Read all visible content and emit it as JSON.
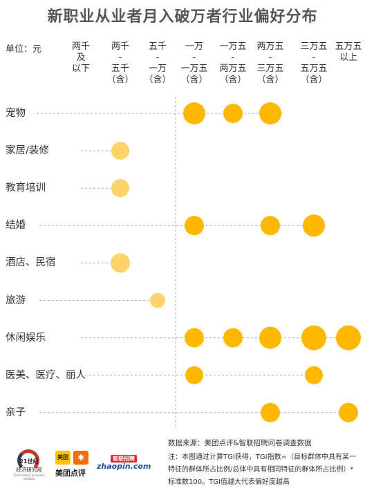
{
  "title": "新职业从业者月入破万者行业偏好分布",
  "unit_label": "单位：元",
  "colors": {
    "dot": "#ffb800",
    "dot_light": "#fed36a",
    "line": "#aaaaaa"
  },
  "chart_data": {
    "type": "scatter",
    "title": "新职业从业者月入破万者行业偏好分布",
    "unit": "元",
    "columns": [
      "两千\n及\n以下",
      "两千\n-\n五千\n（含）",
      "五千\n-\n一万\n（含）",
      "一万\n-\n一万五\n（含）",
      "一万五\n-\n两万五\n（含）",
      "两万五\n-\n三万五\n（含）",
      "三万五\n-\n五万五\n（含）",
      "五万五\n以上"
    ],
    "rows": [
      {
        "label": "宠物",
        "points": [
          {
            "col": 3,
            "size": "l"
          },
          {
            "col": 4,
            "size": "m"
          },
          {
            "col": 5,
            "size": "l"
          }
        ]
      },
      {
        "label": "家居/装修",
        "points": [
          {
            "col": 1,
            "size": "s"
          }
        ]
      },
      {
        "label": "教育培训",
        "points": [
          {
            "col": 1,
            "size": "s"
          }
        ]
      },
      {
        "label": "结婚",
        "points": [
          {
            "col": 3,
            "size": "m"
          },
          {
            "col": 5,
            "size": "m"
          },
          {
            "col": 6,
            "size": "l"
          }
        ]
      },
      {
        "label": "酒店、民宿",
        "points": [
          {
            "col": 1,
            "size": "m"
          }
        ]
      },
      {
        "label": "旅游",
        "points": [
          {
            "col": 2,
            "size": "xs"
          }
        ]
      },
      {
        "label": "休闲娱乐",
        "points": [
          {
            "col": 3,
            "size": "m"
          },
          {
            "col": 4,
            "size": "m"
          },
          {
            "col": 5,
            "size": "l"
          },
          {
            "col": 6,
            "size": "xl"
          },
          {
            "col": 7,
            "size": "xl"
          }
        ]
      },
      {
        "label": "医美、医疗、丽人",
        "points": [
          {
            "col": 3,
            "size": "s"
          },
          {
            "col": 6,
            "size": "s"
          }
        ]
      },
      {
        "label": "亲子",
        "points": [
          {
            "col": 5,
            "size": "m"
          },
          {
            "col": 7,
            "size": "m"
          }
        ]
      }
    ]
  },
  "footer": {
    "source": "数据来源：美团点评&智联招聘问卷调查数据",
    "note": "注：本图通过计算TGI获得，TGI指数=（目标群体中具有某一特征的群体所占比例/总体中具有相同特征的群体所占比例）*标准数100。TGI值越大代表偏好度越高"
  },
  "logos": {
    "logo_21": {
      "line1": "21世纪",
      "line2": "经济研究院",
      "line3": "21st century economic institute"
    },
    "meituan": {
      "badge": "美团",
      "icon": "dianping-icon",
      "text": "美团点评"
    },
    "zhaopin": {
      "badge": "智联招聘",
      "text": "zhaopin.com"
    }
  }
}
